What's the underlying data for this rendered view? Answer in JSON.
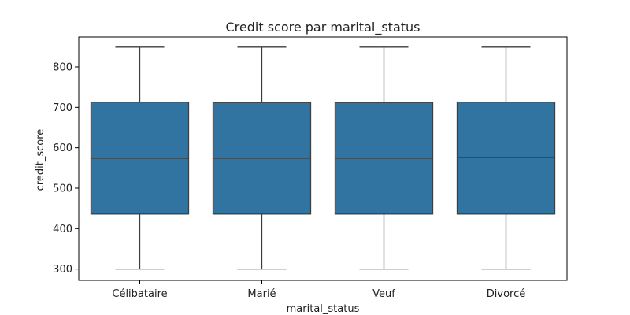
{
  "chart_data": {
    "type": "box",
    "title": "Credit score par marital_status",
    "xlabel": "marital_status",
    "ylabel": "credit_score",
    "categories": [
      "Célibataire",
      "Marié",
      "Veuf",
      "Divorcé"
    ],
    "ylim": [
      272,
      874
    ],
    "yticks": [
      300,
      400,
      500,
      600,
      700,
      800
    ],
    "boxes": [
      {
        "whisker_low": 300,
        "q1": 436,
        "median": 574,
        "q3": 713,
        "whisker_high": 849
      },
      {
        "whisker_low": 300,
        "q1": 436,
        "median": 574,
        "q3": 712,
        "whisker_high": 849
      },
      {
        "whisker_low": 300,
        "q1": 436,
        "median": 574,
        "q3": 712,
        "whisker_high": 849
      },
      {
        "whisker_low": 300,
        "q1": 436,
        "median": 576,
        "q3": 713,
        "whisker_high": 849
      }
    ],
    "grid": false,
    "colors": {
      "box_fill": "#3274a1",
      "line": "#3d3d3d",
      "axis": "#000000"
    }
  }
}
